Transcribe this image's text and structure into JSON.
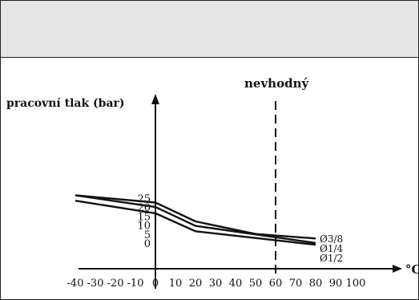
{
  "header": {
    "title": ""
  },
  "chart_data": {
    "type": "line",
    "ylabel": "pracovní tlak (bar)",
    "xlabel": "°C",
    "annotation": "nevhodný",
    "threshold_x": 60,
    "x_ticks": [
      -40,
      -30,
      -20,
      -10,
      0,
      10,
      20,
      30,
      40,
      50,
      60,
      70,
      80,
      90,
      100
    ],
    "y_ticks": [
      0,
      5,
      10,
      15,
      20,
      25
    ],
    "xlim": [
      -42,
      110
    ],
    "ylim": [
      -4,
      38
    ],
    "series": [
      {
        "name": "Ø3/8",
        "points": [
          [
            -40,
            27
          ],
          [
            0,
            23
          ],
          [
            20,
            12.5
          ],
          [
            50,
            5.5
          ],
          [
            80,
            3
          ]
        ]
      },
      {
        "name": "Ø1/4",
        "points": [
          [
            -40,
            27
          ],
          [
            0,
            20.5
          ],
          [
            20,
            10
          ],
          [
            80,
            0.5
          ]
        ]
      },
      {
        "name": "Ø1/2",
        "points": [
          [
            -40,
            24
          ],
          [
            0,
            17
          ],
          [
            20,
            7
          ],
          [
            80,
            -0.5
          ]
        ]
      }
    ]
  }
}
